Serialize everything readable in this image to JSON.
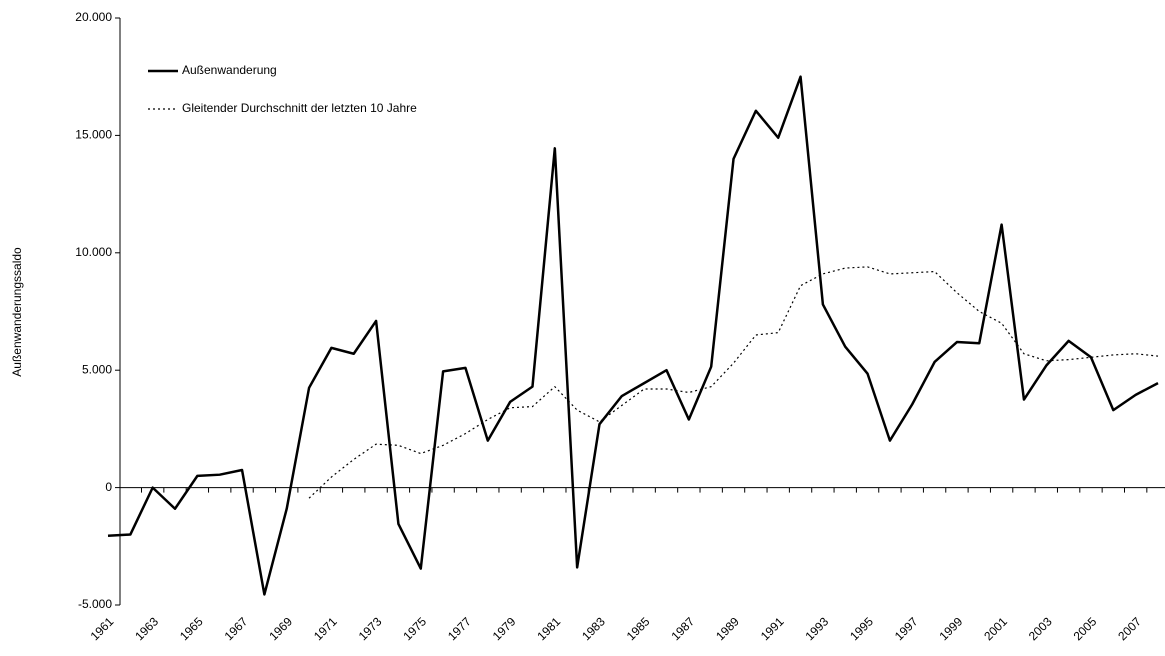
{
  "chart_data": {
    "type": "line",
    "y_label": "Außenwanderungssaldo",
    "categories": [
      "1961",
      null,
      "1963",
      null,
      "1965",
      null,
      "1967",
      null,
      "1969",
      null,
      "1971",
      null,
      "1973",
      null,
      "1975",
      null,
      "1977",
      null,
      "1979",
      null,
      "1981",
      null,
      "1983",
      null,
      "1985",
      null,
      "1987",
      null,
      "1989",
      null,
      "1991",
      null,
      "1993",
      null,
      "1995",
      null,
      "1997",
      null,
      "1999",
      null,
      "2001",
      null,
      "2003",
      null,
      "2005",
      null,
      "2007",
      null
    ],
    "series": [
      {
        "name": "Außenwanderung",
        "color": "#000000",
        "line_style": "solid",
        "values": [
          -2050,
          -2000,
          0,
          -900,
          500,
          550,
          750,
          -4550,
          -900,
          4250,
          5950,
          5700,
          7100,
          -1550,
          -3450,
          4950,
          5100,
          2000,
          3650,
          4300,
          14450,
          -3400,
          2700,
          3900,
          4450,
          5000,
          2900,
          5150,
          14000,
          16050,
          14900,
          17500,
          7800,
          6000,
          4850,
          2000,
          3550,
          5350,
          6200,
          6150,
          11200,
          3750,
          5200,
          6250,
          5550,
          3300,
          3950,
          4450
        ]
      },
      {
        "name": "Gleitender Durchschnitt der letzten 10 Jahre",
        "color": "#000000",
        "line_style": "dotted",
        "values": [
          null,
          null,
          null,
          null,
          null,
          null,
          null,
          null,
          null,
          -450,
          450,
          1200,
          1850,
          1800,
          1450,
          1800,
          2300,
          2900,
          3400,
          3450,
          4300,
          3300,
          2800,
          3500,
          4200,
          4200,
          4050,
          4300,
          5300,
          6500,
          6600,
          8600,
          9100,
          9350,
          9400,
          9100,
          9150,
          9200,
          8300,
          7500,
          7000,
          5700,
          5400,
          5450,
          5550,
          5650,
          5700,
          5600
        ]
      }
    ],
    "ylim": [
      -5000,
      20000
    ],
    "yticks": [
      {
        "value": -5000,
        "label": "-5.000"
      },
      0,
      {
        "value": 5000,
        "label": "5.000"
      },
      {
        "value": 10000,
        "label": "10.000"
      },
      {
        "value": 15000,
        "label": "15.000"
      },
      {
        "value": 20000,
        "label": "20.000"
      }
    ],
    "grid": false
  }
}
